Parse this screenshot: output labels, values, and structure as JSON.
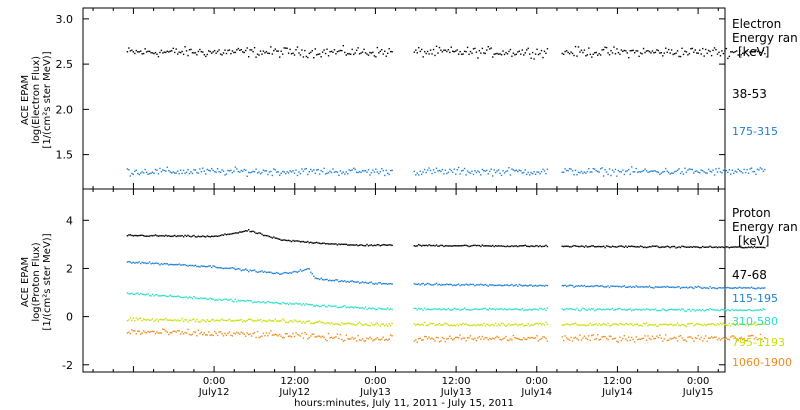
{
  "chart_data": [
    {
      "type": "scatter",
      "panel": "electron",
      "ylabel_lines": [
        "ACE EPAM",
        "log(Electron Flux)",
        "[1/(cm²s ster MeV)]"
      ],
      "ylim": [
        1.12,
        3.12
      ],
      "yticks": [
        1.5,
        2.0,
        2.5,
        3.0
      ],
      "ytick_labels": [
        "1.5",
        "2.0",
        "2.5",
        "3.0"
      ],
      "legend_title": [
        "Electron",
        "Energy ran",
        "[keV]"
      ],
      "x_start_hours": -13,
      "x_end_hours": 82,
      "data_gaps_hours": [
        [
          26.5,
          29.5
        ],
        [
          49.5,
          51.5
        ]
      ],
      "series": [
        {
          "name": "38-53",
          "color": "#000000",
          "level": 2.64,
          "noise": 0.08,
          "trend": [
            [
              -13,
              2.64
            ],
            [
              82,
              2.64
            ]
          ]
        },
        {
          "name": "175-315",
          "color": "#1f7fd6",
          "level": 1.32,
          "noise": 0.06,
          "trend": [
            [
              -13,
              1.32
            ],
            [
              82,
              1.32
            ]
          ]
        }
      ]
    },
    {
      "type": "scatter",
      "panel": "proton",
      "ylabel_lines": [
        "ACE EPAM",
        "log(Proton Flux)",
        "[1/(cm²s ster MeV)]"
      ],
      "ylim": [
        -2.3,
        5.3
      ],
      "yticks": [
        -2,
        0,
        2,
        4
      ],
      "ytick_labels": [
        "-2",
        "0",
        "2",
        "4"
      ],
      "legend_title": [
        "Proton",
        "Energy ran",
        "[keV]"
      ],
      "x_start_hours": -13,
      "x_end_hours": 82,
      "data_gaps_hours": [
        [
          26.5,
          29.5
        ],
        [
          49.5,
          51.5
        ]
      ],
      "series": [
        {
          "name": "47-68",
          "color": "#000000",
          "level": 3.0,
          "noise": 0.05,
          "trend": [
            [
              -13,
              3.4
            ],
            [
              0,
              3.35
            ],
            [
              5,
              3.6
            ],
            [
              10,
              3.2
            ],
            [
              20,
              3.0
            ],
            [
              82,
              2.9
            ]
          ]
        },
        {
          "name": "115-195",
          "color": "#1f7fd6",
          "level": 1.3,
          "noise": 0.06,
          "trend": [
            [
              -13,
              2.3
            ],
            [
              0,
              2.1
            ],
            [
              10,
              1.8
            ],
            [
              14,
              2.0
            ],
            [
              15,
              1.6
            ],
            [
              24,
              1.4
            ],
            [
              82,
              1.2
            ]
          ]
        },
        {
          "name": "310-580",
          "color": "#27e0c8",
          "level": 0.35,
          "noise": 0.07,
          "trend": [
            [
              -13,
              1.0
            ],
            [
              0,
              0.75
            ],
            [
              12,
              0.55
            ],
            [
              24,
              0.35
            ],
            [
              82,
              0.3
            ]
          ]
        },
        {
          "name": "795-1193",
          "color": "#c8e000",
          "level": -0.3,
          "noise": 0.1,
          "trend": [
            [
              -13,
              -0.1
            ],
            [
              10,
              -0.15
            ],
            [
              24,
              -0.3
            ],
            [
              82,
              -0.3
            ]
          ]
        },
        {
          "name": "1060-1900",
          "color": "#f08a1a",
          "level": -0.9,
          "noise": 0.2,
          "trend": [
            [
              -13,
              -0.6
            ],
            [
              10,
              -0.75
            ],
            [
              24,
              -0.9
            ],
            [
              82,
              -0.85
            ]
          ]
        }
      ]
    }
  ],
  "x_axis": {
    "tick_labels": [
      {
        "hours": 0,
        "time": "0:00",
        "day": "July12"
      },
      {
        "hours": 12,
        "time": "12:00",
        "day": "July12"
      },
      {
        "hours": 24,
        "time": "0:00",
        "day": "July13"
      },
      {
        "hours": 36,
        "time": "12:00",
        "day": "July13"
      },
      {
        "hours": 48,
        "time": "0:00",
        "day": "July14"
      },
      {
        "hours": 60,
        "time": "12:00",
        "day": "July14"
      },
      {
        "hours": 72,
        "time": "0:00",
        "day": "July15"
      }
    ],
    "xlabel": "hours:minutes, July 11, 2011 - July 15, 2011"
  }
}
